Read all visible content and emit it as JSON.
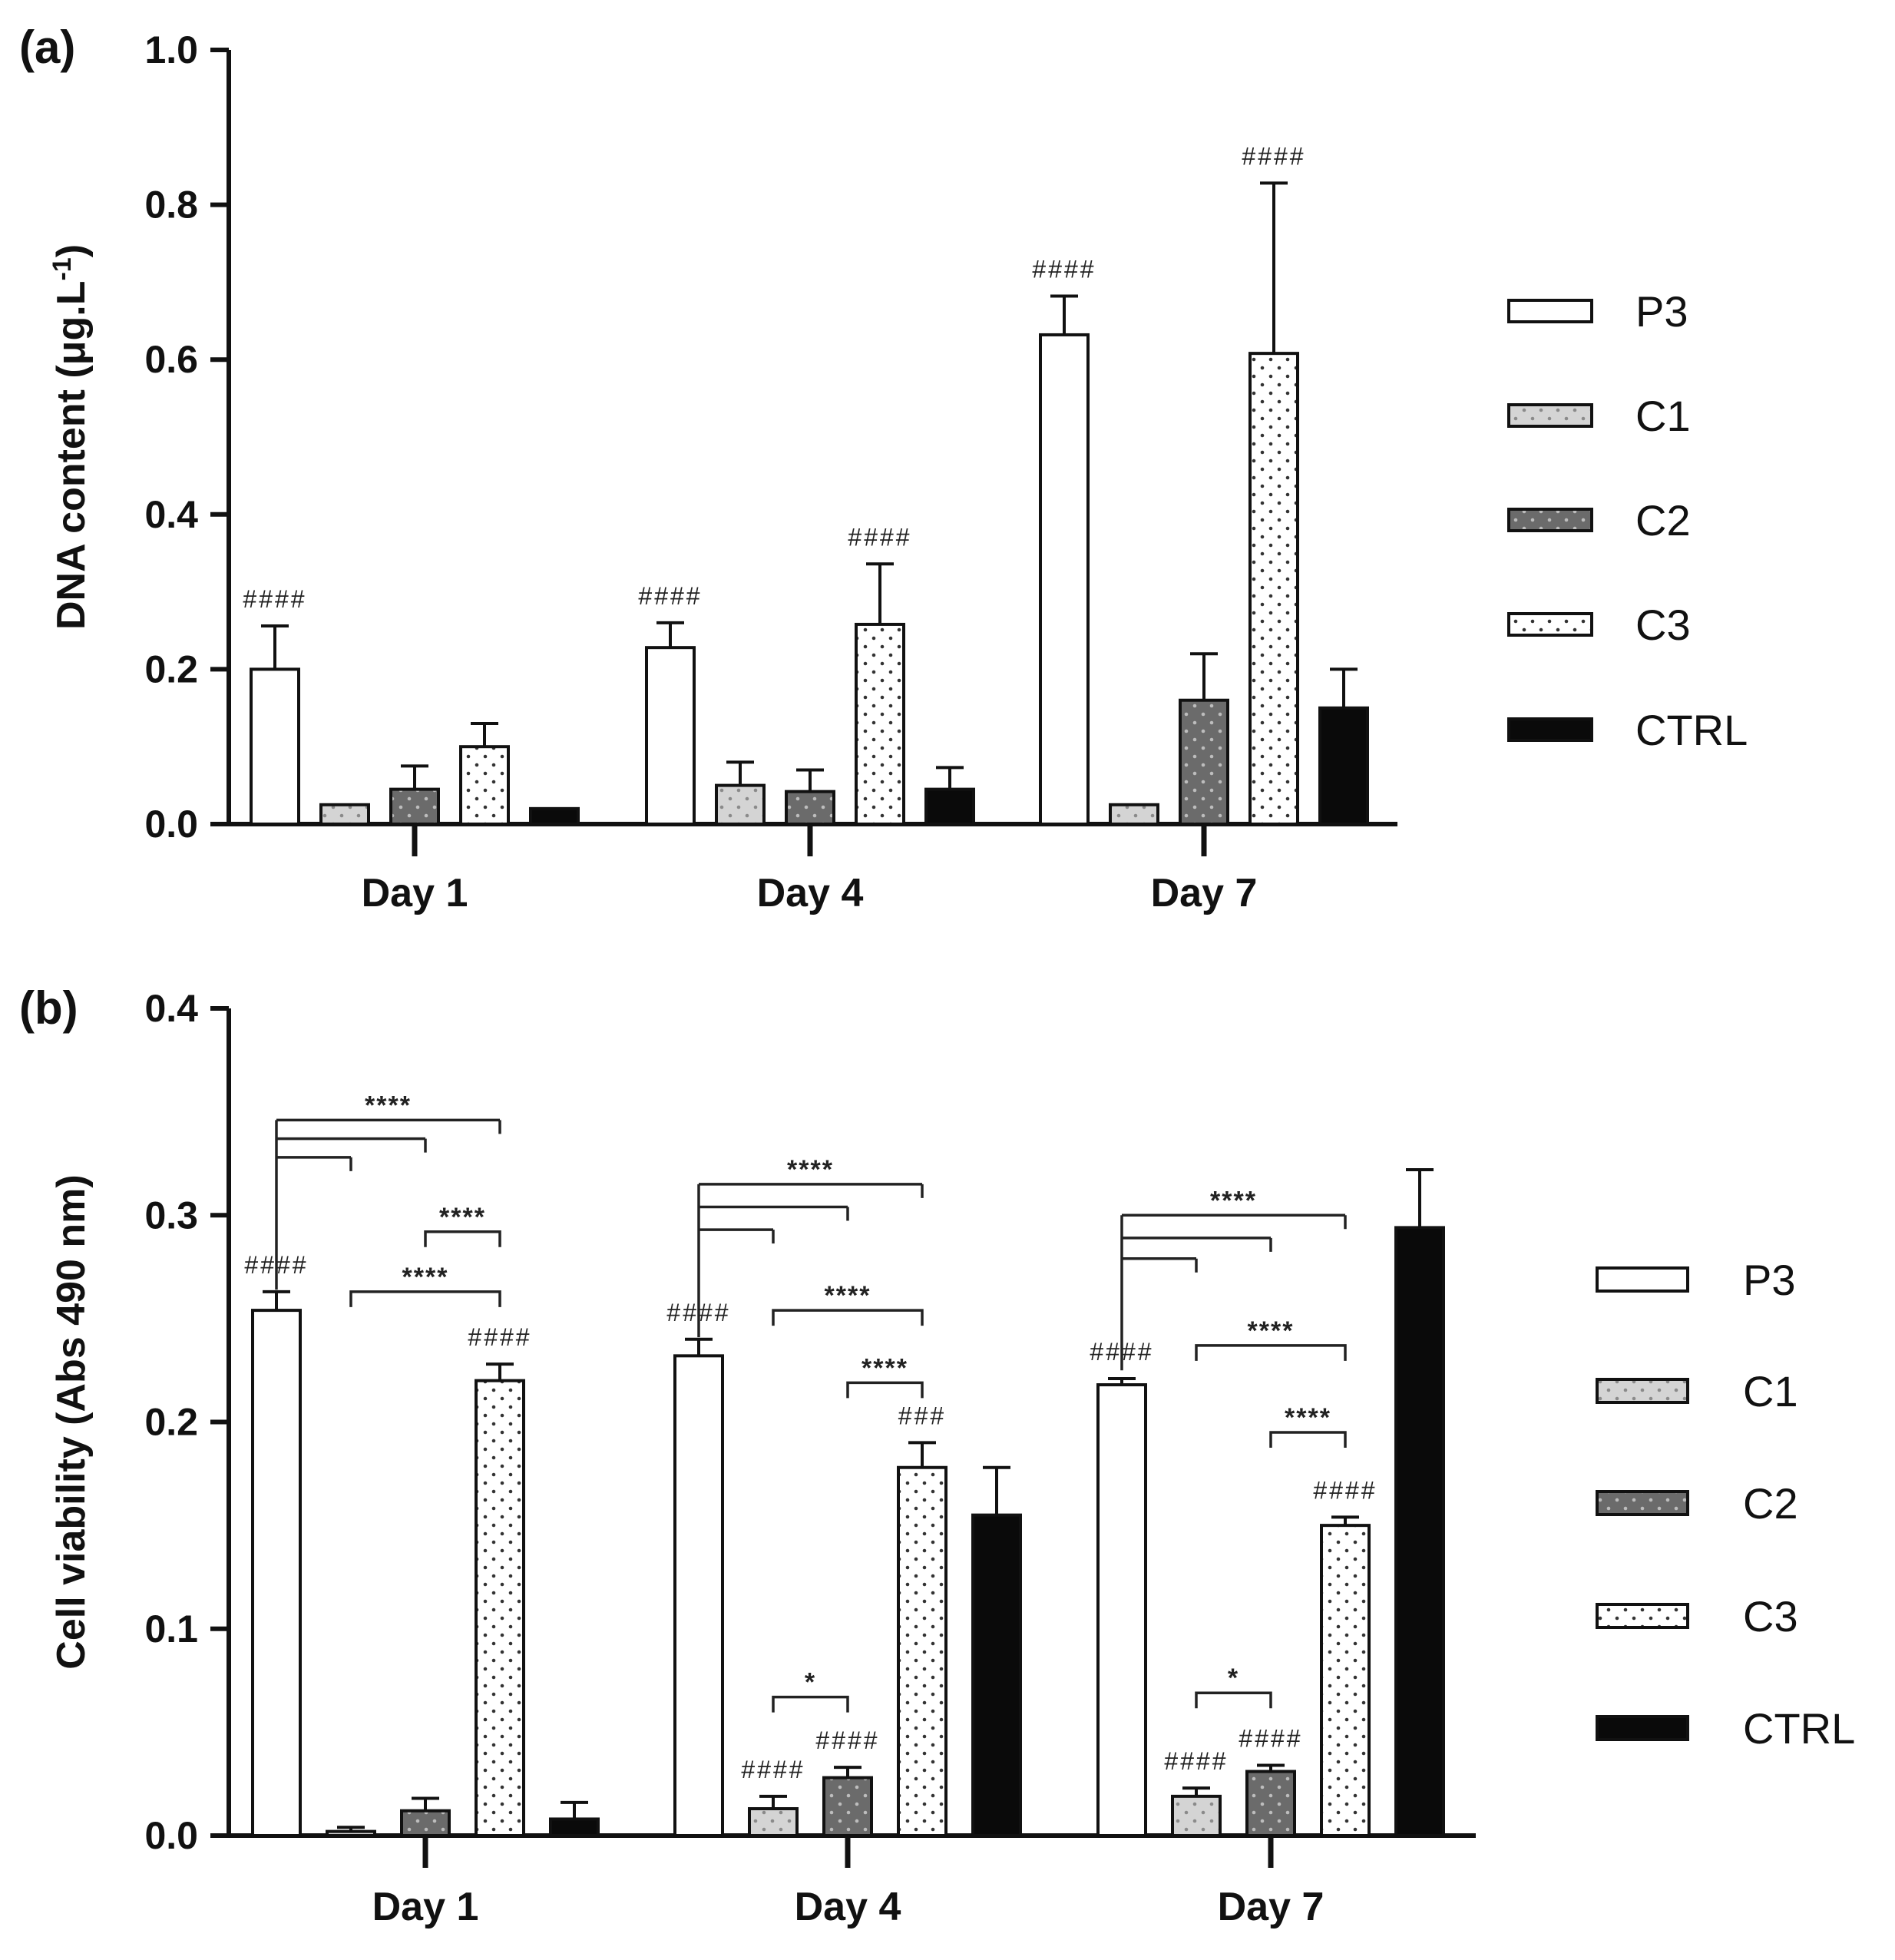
{
  "figure": {
    "series_names": [
      "P3",
      "C1",
      "C2",
      "C3",
      "CTRL"
    ],
    "series_styles": [
      {
        "fill": "#ffffff",
        "dot": "none"
      },
      {
        "fill": "#d4d4d4",
        "dot": "#8a8a8a"
      },
      {
        "fill": "#6b6b6b",
        "dot": "#bdbdbd"
      },
      {
        "fill": "#ffffff",
        "dot": "#333333"
      },
      {
        "fill": "#0a0a0a",
        "dot": "none"
      }
    ]
  },
  "chart_data": [
    {
      "id": "a",
      "panel_label": "(a)",
      "type": "bar",
      "title": "",
      "xlabel": "",
      "ylabel_main": "DNA content (μg.L",
      "ylabel_sup": "-1",
      "ylabel_tail": ")",
      "ylim": [
        0,
        1.0
      ],
      "yticks": [
        0.0,
        0.2,
        0.4,
        0.6,
        0.8,
        1.0
      ],
      "ytick_labels": [
        "0.0",
        "0.2",
        "0.4",
        "0.6",
        "0.8",
        "1.0"
      ],
      "categories": [
        "Day 1",
        "Day 4",
        "Day 7"
      ],
      "legend_position": "right",
      "series": [
        {
          "name": "P3",
          "values": [
            0.2,
            0.228,
            0.632
          ],
          "errors": [
            0.056,
            0.032,
            0.05
          ]
        },
        {
          "name": "C1",
          "values": [
            0.025,
            0.05,
            0.025
          ],
          "errors": [
            0,
            0.03,
            0
          ]
        },
        {
          "name": "C2",
          "values": [
            0.045,
            0.042,
            0.16
          ],
          "errors": [
            0.03,
            0.028,
            0.06
          ]
        },
        {
          "name": "C3",
          "values": [
            0.1,
            0.258,
            0.608
          ],
          "errors": [
            0.03,
            0.078,
            0.22
          ]
        },
        {
          "name": "CTRL",
          "values": [
            0.02,
            0.045,
            0.15
          ],
          "errors": [
            0,
            0.028,
            0.05
          ]
        }
      ],
      "hash_marks": [
        {
          "cat": 0,
          "series": 0,
          "text": "####"
        },
        {
          "cat": 1,
          "series": 0,
          "text": "####"
        },
        {
          "cat": 1,
          "series": 3,
          "text": "####"
        },
        {
          "cat": 2,
          "series": 0,
          "text": "####"
        },
        {
          "cat": 2,
          "series": 3,
          "text": "####"
        }
      ],
      "brackets": []
    },
    {
      "id": "b",
      "panel_label": "(b)",
      "type": "bar",
      "title": "",
      "xlabel": "",
      "ylabel_main": "Cell viability (Abs 490 nm)",
      "ylabel_sup": "",
      "ylabel_tail": "",
      "ylim": [
        0,
        0.4
      ],
      "yticks": [
        0.0,
        0.1,
        0.2,
        0.3,
        0.4
      ],
      "ytick_labels": [
        "0.0",
        "0.1",
        "0.2",
        "0.3",
        "0.4"
      ],
      "categories": [
        "Day 1",
        "Day 4",
        "Day 7"
      ],
      "legend_position": "right",
      "series": [
        {
          "name": "P3",
          "values": [
            0.254,
            0.232,
            0.218
          ],
          "errors": [
            0.009,
            0.008,
            0.003
          ]
        },
        {
          "name": "C1",
          "values": [
            0.002,
            0.013,
            0.019
          ],
          "errors": [
            0.002,
            0.006,
            0.004
          ]
        },
        {
          "name": "C2",
          "values": [
            0.012,
            0.028,
            0.031
          ],
          "errors": [
            0.006,
            0.005,
            0.003
          ]
        },
        {
          "name": "C3",
          "values": [
            0.22,
            0.178,
            0.15
          ],
          "errors": [
            0.008,
            0.012,
            0.004
          ]
        },
        {
          "name": "CTRL",
          "values": [
            0.008,
            0.155,
            0.294
          ],
          "errors": [
            0.008,
            0.023,
            0.028
          ]
        }
      ],
      "hash_marks": [
        {
          "cat": 0,
          "series": 0,
          "text": "####"
        },
        {
          "cat": 0,
          "series": 3,
          "text": "####"
        },
        {
          "cat": 1,
          "series": 0,
          "text": "####"
        },
        {
          "cat": 1,
          "series": 1,
          "text": "####"
        },
        {
          "cat": 1,
          "series": 2,
          "text": "####"
        },
        {
          "cat": 1,
          "series": 3,
          "text": "###"
        },
        {
          "cat": 2,
          "series": 0,
          "text": "####"
        },
        {
          "cat": 2,
          "series": 1,
          "text": "####"
        },
        {
          "cat": 2,
          "series": 2,
          "text": "####"
        },
        {
          "cat": 2,
          "series": 3,
          "text": "####"
        }
      ],
      "brackets": [
        {
          "cat": 0,
          "from": 0,
          "to": 3,
          "level": 0.346,
          "label": "****",
          "style": "comb",
          "stem_bottom": 0.264,
          "ends": [
            [
              1,
              0.328
            ],
            [
              2,
              0.337
            ],
            [
              3,
              0.346
            ]
          ]
        },
        {
          "cat": 0,
          "from": 2,
          "to": 3,
          "level": 0.292,
          "label": "****",
          "style": "bracket"
        },
        {
          "cat": 0,
          "from": 1,
          "to": 3,
          "level": 0.263,
          "label": "****",
          "style": "bracket"
        },
        {
          "cat": 1,
          "from": 0,
          "to": 3,
          "level": 0.315,
          "label": "****",
          "style": "comb",
          "stem_bottom": 0.241,
          "ends": [
            [
              1,
              0.293
            ],
            [
              2,
              0.304
            ],
            [
              3,
              0.315
            ]
          ]
        },
        {
          "cat": 1,
          "from": 1,
          "to": 3,
          "level": 0.254,
          "label": "****",
          "style": "bracket"
        },
        {
          "cat": 1,
          "from": 2,
          "to": 3,
          "level": 0.219,
          "label": "****",
          "style": "bracket"
        },
        {
          "cat": 1,
          "from": 1,
          "to": 2,
          "level": 0.067,
          "label": "*",
          "style": "bracket"
        },
        {
          "cat": 2,
          "from": 0,
          "to": 3,
          "level": 0.3,
          "label": "****",
          "style": "comb",
          "stem_bottom": 0.225,
          "ends": [
            [
              1,
              0.279
            ],
            [
              2,
              0.289
            ],
            [
              3,
              0.3
            ]
          ]
        },
        {
          "cat": 2,
          "from": 1,
          "to": 3,
          "level": 0.237,
          "label": "****",
          "style": "bracket"
        },
        {
          "cat": 2,
          "from": 2,
          "to": 3,
          "level": 0.195,
          "label": "****",
          "style": "bracket"
        },
        {
          "cat": 2,
          "from": 1,
          "to": 2,
          "level": 0.069,
          "label": "*",
          "style": "bracket"
        }
      ]
    }
  ]
}
